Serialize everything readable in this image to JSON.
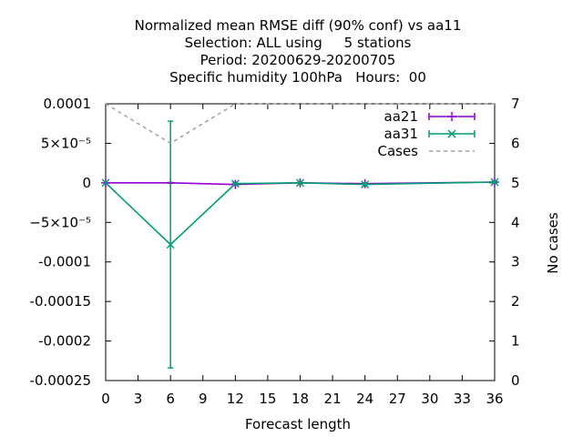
{
  "chart_data": {
    "type": "line",
    "title_lines": [
      "Normalized mean RMSE diff (90% conf) vs aa11",
      "Selection: ALL using     5 stations",
      "Period: 20200629-20200705",
      "Specific humidity 100hPa   Hours:  00"
    ],
    "xlabel": "Forecast length",
    "y2label": "No cases",
    "xlim": [
      0,
      36
    ],
    "ylim": [
      -0.00025,
      0.0001
    ],
    "y2lim": [
      0,
      7
    ],
    "x_ticks": [
      "0",
      "3",
      "6",
      "9",
      "12",
      "15",
      "18",
      "21",
      "24",
      "27",
      "30",
      "33",
      "36"
    ],
    "x_tick_values": [
      0,
      3,
      6,
      9,
      12,
      15,
      18,
      21,
      24,
      27,
      30,
      33,
      36
    ],
    "y_ticks": [
      "0.0001",
      "5×10⁻⁵",
      "0",
      "−5×10⁻⁵",
      "-0.0001",
      "-0.00015",
      "-0.0002",
      "-0.00025"
    ],
    "y_tick_values": [
      0.0001,
      5e-05,
      0,
      -5e-05,
      -0.0001,
      -0.00015,
      -0.0002,
      -0.00025
    ],
    "y2_ticks": [
      "0",
      "1",
      "2",
      "3",
      "4",
      "5",
      "6",
      "7"
    ],
    "y2_tick_values": [
      0,
      1,
      2,
      3,
      4,
      5,
      6,
      7
    ],
    "legend_position": "top-right",
    "series": [
      {
        "name": "aa21",
        "color": "#9400d3",
        "marker": "plus",
        "x": [
          0,
          6,
          12,
          18,
          24,
          36
        ],
        "y": [
          0,
          0,
          -2e-06,
          0,
          -1e-06,
          1e-06
        ],
        "err_low": [
          0,
          -5e-07,
          -3e-06,
          -5e-07,
          -2e-06,
          0
        ],
        "err_high": [
          0,
          5e-07,
          -1e-06,
          5e-07,
          0,
          2e-06
        ]
      },
      {
        "name": "aa31",
        "color": "#009e73",
        "marker": "x",
        "x": [
          0,
          6,
          12,
          18,
          24,
          36
        ],
        "y": [
          0,
          -7.8e-05,
          -1e-06,
          0,
          -2e-06,
          1e-06
        ],
        "err_low": [
          0,
          -0.000234,
          -2e-06,
          -5e-07,
          -4e-06,
          0
        ],
        "err_high": [
          0,
          7.8e-05,
          0,
          5e-07,
          0,
          2e-06
        ]
      },
      {
        "name": "Cases",
        "color": "#a0a0a0",
        "style": "dashed",
        "axis": "y2",
        "x": [
          0,
          6,
          12,
          18,
          24,
          30,
          36
        ],
        "y": [
          7,
          6,
          7,
          7,
          7,
          7,
          7
        ]
      }
    ]
  }
}
